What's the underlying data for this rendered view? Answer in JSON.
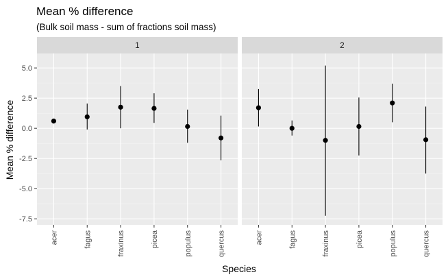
{
  "chart_data": {
    "type": "scatter",
    "title": "Mean % difference",
    "subtitle": "(Bulk soil mass - sum of fractions soil mass)",
    "xlabel": "Species",
    "ylabel": "Mean % difference",
    "categories": [
      "acer",
      "fagus",
      "fraxinus",
      "picea",
      "populus",
      "quercus"
    ],
    "ylim": [
      -8.0,
      6.2
    ],
    "yticks": [
      -7.5,
      -5.0,
      -2.5,
      0.0,
      2.5,
      5.0
    ],
    "ytick_labels": [
      "-7.5",
      "-5.0",
      "-2.5",
      "0.0",
      "2.5",
      "5.0"
    ],
    "grid": true,
    "error_bars": true,
    "panels": [
      {
        "label": "1",
        "points": [
          {
            "x": "acer",
            "y": 0.6,
            "ymin": 0.4,
            "ymax": 0.8
          },
          {
            "x": "fagus",
            "y": 0.95,
            "ymin": -0.1,
            "ymax": 2.05
          },
          {
            "x": "fraxinus",
            "y": 1.75,
            "ymin": 0.0,
            "ymax": 3.5
          },
          {
            "x": "picea",
            "y": 1.65,
            "ymin": 0.45,
            "ymax": 2.9
          },
          {
            "x": "populus",
            "y": 0.15,
            "ymin": -1.2,
            "ymax": 1.55
          },
          {
            "x": "quercus",
            "y": -0.8,
            "ymin": -2.65,
            "ymax": 1.05
          }
        ]
      },
      {
        "label": "2",
        "points": [
          {
            "x": "acer",
            "y": 1.7,
            "ymin": 0.15,
            "ymax": 3.25
          },
          {
            "x": "fagus",
            "y": 0.0,
            "ymin": -0.6,
            "ymax": 0.65
          },
          {
            "x": "fraxinus",
            "y": -1.0,
            "ymin": -7.25,
            "ymax": 5.2
          },
          {
            "x": "picea",
            "y": 0.15,
            "ymin": -2.25,
            "ymax": 2.55
          },
          {
            "x": "populus",
            "y": 2.1,
            "ymin": 0.5,
            "ymax": 3.7
          },
          {
            "x": "quercus",
            "y": -0.95,
            "ymin": -3.75,
            "ymax": 1.8
          }
        ]
      }
    ],
    "colors": {
      "panel_bg": "#ebebeb",
      "strip_bg": "#d9d9d9",
      "grid_major": "#ffffff",
      "point": "#000000"
    }
  }
}
